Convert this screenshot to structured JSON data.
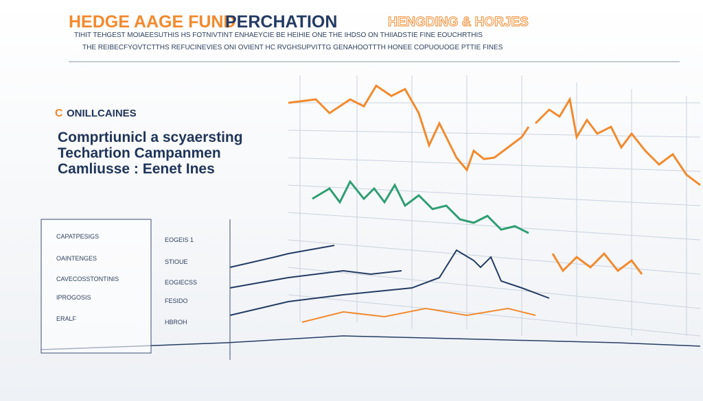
{
  "header": {
    "title_part1": "HEDGE AAGE FUND",
    "title_part2": "PERCHATION",
    "title_part3": "HENGDING & HORJES",
    "subtitle_lines": [
      "TIHIT TEHGEST MOIAEESUTHIS HS FOTNIVTINT ENHAEYCIE BE HEIHIE ONE THE IHDSO ON THIIADSTIE FINE EOUCHRTHIS",
      "THE  REIBECFYOVTCTTHS REFUCINEVIES ONI OVIENT HC RVGHSUPVITTG GENAHOOTTTH HONEE COPUOUOGE PTTIE FINES"
    ]
  },
  "sidebar": {
    "heading": "ONILLCAINES",
    "lines": [
      "Comprtiunicl a scyaersting",
      "Techartion Campanmen",
      "Camliusse : Eenet Ines"
    ]
  },
  "panel": {
    "left_labels": [
      "CAPATPESIGS",
      "OAINTENGES",
      "CAVECOSSTONTINIS",
      "IPROGOSIS",
      "ERALF"
    ],
    "right_labels": [
      "EOGEIS 1",
      "STIOUE",
      "EOGIECSS",
      "FESIDO",
      "HBROH"
    ]
  }
}
